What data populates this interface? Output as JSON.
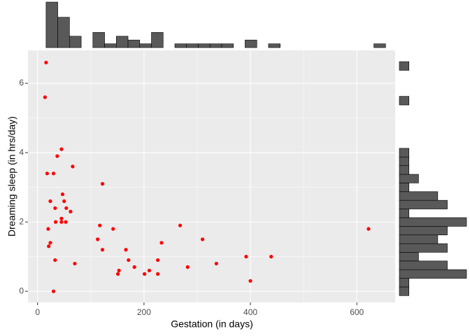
{
  "chart_data": {
    "type": "scatter",
    "x_label": "Gestation (in days)",
    "y_label": "Dreaming sleep (in hrs/day)",
    "x": [
      16,
      14,
      45,
      37,
      66,
      18,
      30,
      122,
      47,
      24,
      50,
      33,
      54,
      62,
      45,
      34,
      45,
      53,
      117,
      268,
      20,
      142,
      622,
      113,
      310,
      233,
      24,
      21,
      122,
      166,
      171,
      226,
      33,
      392,
      439,
      70,
      336,
      182,
      282,
      153,
      210,
      151,
      201,
      226,
      400,
      30
    ],
    "series": [
      {
        "color": "#ff0000",
        "values": [
          6.6,
          5.6,
          4.1,
          3.9,
          3.6,
          3.4,
          3.4,
          3.1,
          2.8,
          2.6,
          2.6,
          2.4,
          2.4,
          2.3,
          2.1,
          2.0,
          2.0,
          2.0,
          1.9,
          1.9,
          1.8,
          1.8,
          1.8,
          1.5,
          1.5,
          1.4,
          1.4,
          1.3,
          1.2,
          1.2,
          0.9,
          0.9,
          0.9,
          1.0,
          1.0,
          0.8,
          0.8,
          0.7,
          0.7,
          0.6,
          0.6,
          0.5,
          0.5,
          0.5,
          0.3,
          0.0
        ]
      }
    ],
    "xlim": [
      -18,
      672
    ],
    "ylim": [
      -0.32,
      6.95
    ],
    "xticks": [
      0,
      200,
      400,
      600
    ],
    "yticks": [
      0,
      2,
      4,
      6
    ],
    "grid": true,
    "minor_grid": true,
    "x_histogram": {
      "color": "#595959",
      "bins": [
        16,
        38,
        60,
        82,
        104,
        126,
        148,
        170,
        192,
        214,
        236,
        258,
        280,
        302,
        324,
        346,
        368,
        390,
        412,
        434,
        456,
        478,
        500,
        522,
        544,
        566,
        588,
        610,
        632,
        654
      ],
      "counts": [
        12,
        8,
        3,
        0,
        4,
        1,
        3,
        2,
        1,
        4,
        0,
        1,
        1,
        1,
        1,
        1,
        0,
        2,
        0,
        1,
        0,
        0,
        0,
        0,
        0,
        0,
        0,
        0,
        1
      ]
    },
    "y_histogram": {
      "color": "#595959",
      "bins": [
        -0.125,
        0.125,
        0.375,
        0.625,
        0.875,
        1.125,
        1.375,
        1.625,
        1.875,
        2.125,
        2.375,
        2.625,
        2.875,
        3.125,
        3.375,
        3.625,
        3.875,
        4.125,
        4.375,
        4.625,
        4.875,
        5.125,
        5.375,
        5.625,
        5.875,
        6.125,
        6.375,
        6.625
      ],
      "counts": [
        1,
        1,
        7,
        5,
        2,
        5,
        4,
        5,
        7,
        1,
        5,
        4,
        1,
        2,
        1,
        1,
        1,
        0,
        0,
        0,
        0,
        0,
        1,
        0,
        0,
        0,
        1
      ]
    }
  }
}
